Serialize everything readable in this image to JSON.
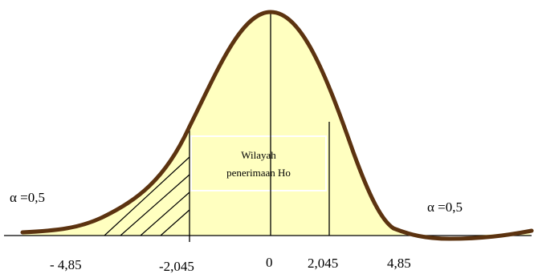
{
  "diagram": {
    "region_label_line1": "Wilayah",
    "region_label_line2": "penerimaan Ho",
    "alpha_left": "α =0,5",
    "alpha_right": "α =0,5",
    "tick_labels": {
      "neg_t_calc": "- 4,85",
      "neg_t_table": "-2,045",
      "zero": "0",
      "pos_t_table": "2,045",
      "pos_t_calc": "4,85"
    },
    "colors": {
      "curve": "#5c3310",
      "fill": "#ffffc0",
      "lines": "#000000"
    }
  }
}
